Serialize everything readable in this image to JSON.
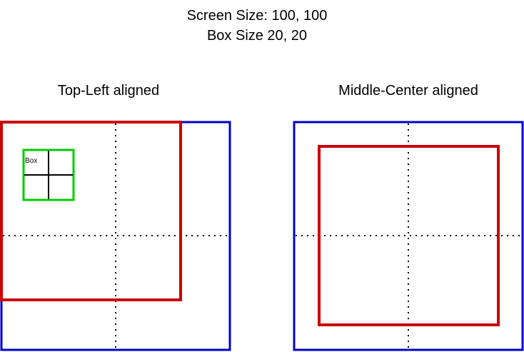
{
  "header": {
    "line1": "Screen Size: 100, 100",
    "line2": "Box Size 20, 20"
  },
  "panels": [
    {
      "title": "Top-Left aligned",
      "box_label": "Box"
    },
    {
      "title": "Middle-Center aligned"
    }
  ],
  "colors": {
    "screen": "#0000cc",
    "region": "#cc0000",
    "box": "#00cc00",
    "guides": "#000000"
  }
}
